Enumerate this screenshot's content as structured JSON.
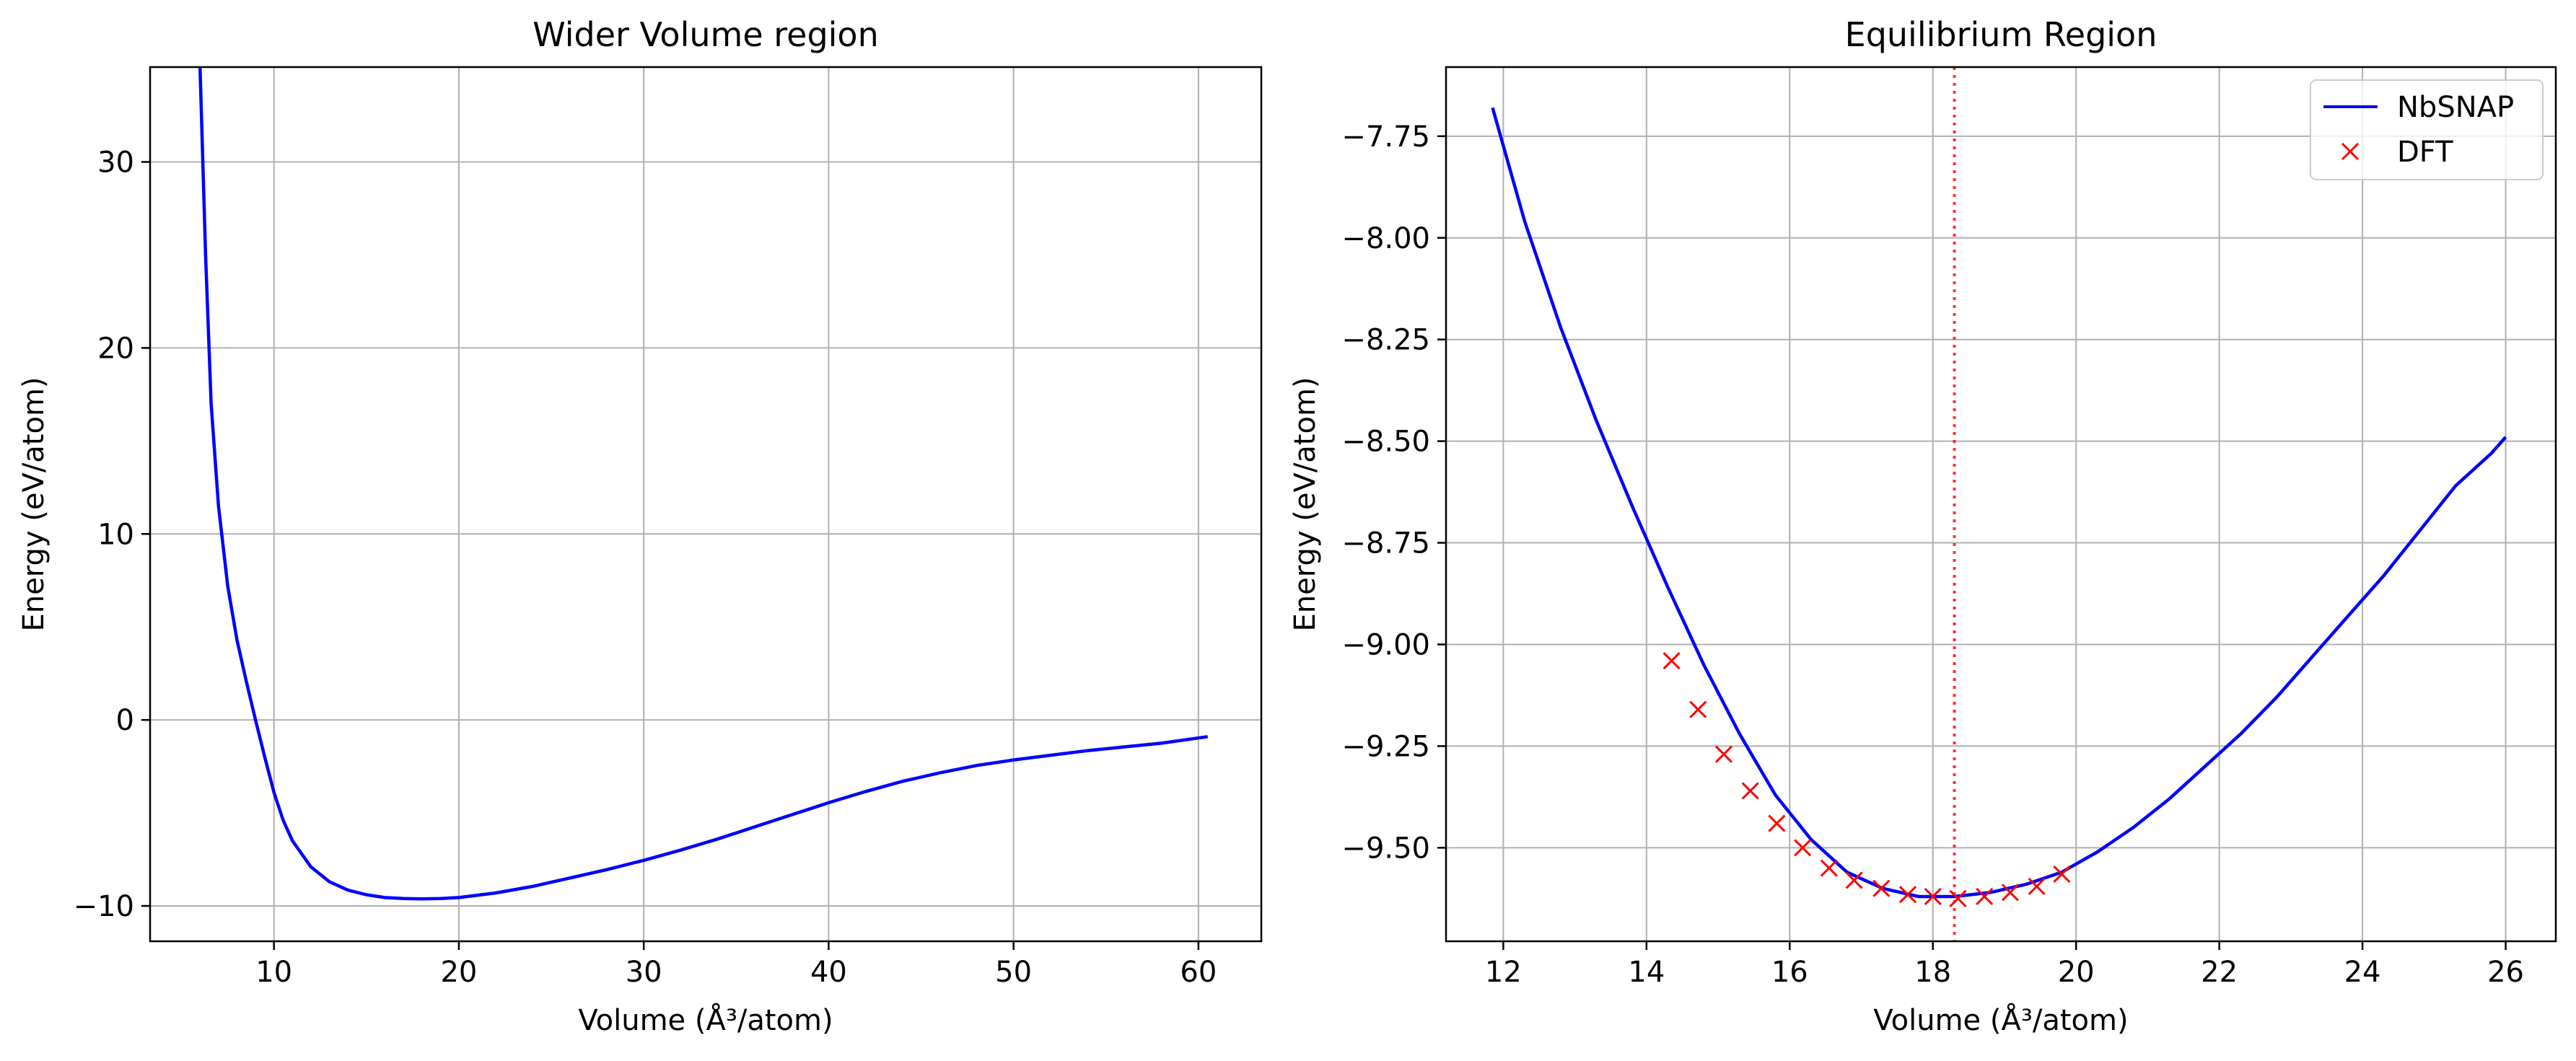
{
  "figure": {
    "panels": [
      {
        "title": "Wider Volume region",
        "xlabel": "Volume (Å³/atom)",
        "ylabel": "Energy (eV/atom)"
      },
      {
        "title": "Equilibrium Region",
        "xlabel": "Volume (Å³/atom)",
        "ylabel": "Energy (eV/atom)"
      }
    ]
  },
  "chart_data": [
    {
      "type": "line",
      "title": "Wider Volume region",
      "xlabel": "Volume (Å³/atom)",
      "ylabel": "Energy (eV/atom)",
      "xlim": [
        3.3,
        63.4
      ],
      "ylim": [
        -11.9,
        35.1
      ],
      "xticks": [
        10,
        20,
        30,
        40,
        50,
        60
      ],
      "xtick_labels": [
        "10",
        "20",
        "30",
        "40",
        "50",
        "60"
      ],
      "yticks": [
        -10,
        0,
        10,
        20,
        30
      ],
      "ytick_labels": [
        "−10",
        "0",
        "10",
        "20",
        "30"
      ],
      "grid": true,
      "legend": null,
      "series": [
        {
          "color": "#0000ff",
          "x": [
            6.0,
            6.3,
            6.6,
            7.0,
            7.5,
            8.0,
            8.5,
            9.0,
            9.5,
            10.0,
            10.5,
            11.0,
            12.0,
            13.0,
            14.0,
            15.0,
            16.0,
            17.0,
            18.0,
            19.0,
            20.0,
            22.0,
            24.0,
            26.0,
            28.0,
            30.0,
            32.0,
            34.0,
            36.0,
            38.0,
            40.0,
            42.0,
            44.0,
            46.0,
            48.0,
            50.0,
            52.0,
            54.0,
            56.0,
            58.0,
            60.5
          ],
          "values": [
            35.1,
            25.0,
            17.0,
            11.5,
            7.2,
            4.3,
            2.1,
            0.0,
            -2.0,
            -3.9,
            -5.4,
            -6.5,
            -7.9,
            -8.7,
            -9.15,
            -9.4,
            -9.55,
            -9.6,
            -9.62,
            -9.6,
            -9.55,
            -9.3,
            -8.95,
            -8.5,
            -8.05,
            -7.55,
            -7.0,
            -6.4,
            -5.75,
            -5.1,
            -4.45,
            -3.85,
            -3.3,
            -2.85,
            -2.45,
            -2.15,
            -1.9,
            -1.65,
            -1.45,
            -1.25,
            -0.9
          ]
        }
      ]
    },
    {
      "type": "line",
      "title": "Equilibrium Region",
      "xlabel": "Volume (Å³/atom)",
      "ylabel": "Energy (eV/atom)",
      "xlim": [
        11.2,
        26.7
      ],
      "ylim": [
        -9.73,
        -7.58
      ],
      "xticks": [
        12,
        14,
        16,
        18,
        20,
        22,
        24,
        26
      ],
      "xtick_labels": [
        "12",
        "14",
        "16",
        "18",
        "20",
        "22",
        "24",
        "26"
      ],
      "yticks": [
        -9.5,
        -9.25,
        -9.0,
        -8.75,
        -8.5,
        -8.25,
        -8.0,
        -7.75
      ],
      "ytick_labels": [
        "−9.50",
        "−9.25",
        "−9.00",
        "−8.75",
        "−8.50",
        "−8.25",
        "−8.00",
        "−7.75"
      ],
      "grid": true,
      "legend": "upper right",
      "vline": {
        "x": 18.3,
        "color": "#ff0000",
        "style": "dotted"
      },
      "series": [
        {
          "name": "NbSNAP",
          "kind": "line",
          "color": "#0000ff",
          "x": [
            11.85,
            12.3,
            12.8,
            13.3,
            13.8,
            14.3,
            14.8,
            15.3,
            15.8,
            16.3,
            16.8,
            17.3,
            17.8,
            18.3,
            18.8,
            19.3,
            19.8,
            20.3,
            20.8,
            21.3,
            21.8,
            22.3,
            22.8,
            23.3,
            23.8,
            24.3,
            24.8,
            25.3,
            25.8,
            26.0
          ],
          "values": [
            -7.68,
            -7.96,
            -8.22,
            -8.45,
            -8.66,
            -8.86,
            -9.05,
            -9.22,
            -9.37,
            -9.48,
            -9.56,
            -9.6,
            -9.62,
            -9.62,
            -9.61,
            -9.59,
            -9.56,
            -9.51,
            -9.45,
            -9.38,
            -9.3,
            -9.22,
            -9.13,
            -9.03,
            -8.93,
            -8.83,
            -8.72,
            -8.61,
            -8.53,
            -8.49
          ]
        },
        {
          "name": "DFT",
          "kind": "marker",
          "marker": "x",
          "color": "#ff0000",
          "x": [
            14.35,
            14.72,
            15.08,
            15.45,
            15.82,
            16.18,
            16.55,
            16.9,
            17.28,
            17.65,
            18.0,
            18.35,
            18.72,
            19.08,
            19.45,
            19.8
          ],
          "values": [
            -9.04,
            -9.16,
            -9.27,
            -9.36,
            -9.44,
            -9.5,
            -9.55,
            -9.58,
            -9.6,
            -9.615,
            -9.62,
            -9.625,
            -9.62,
            -9.61,
            -9.595,
            -9.565
          ]
        }
      ]
    }
  ]
}
